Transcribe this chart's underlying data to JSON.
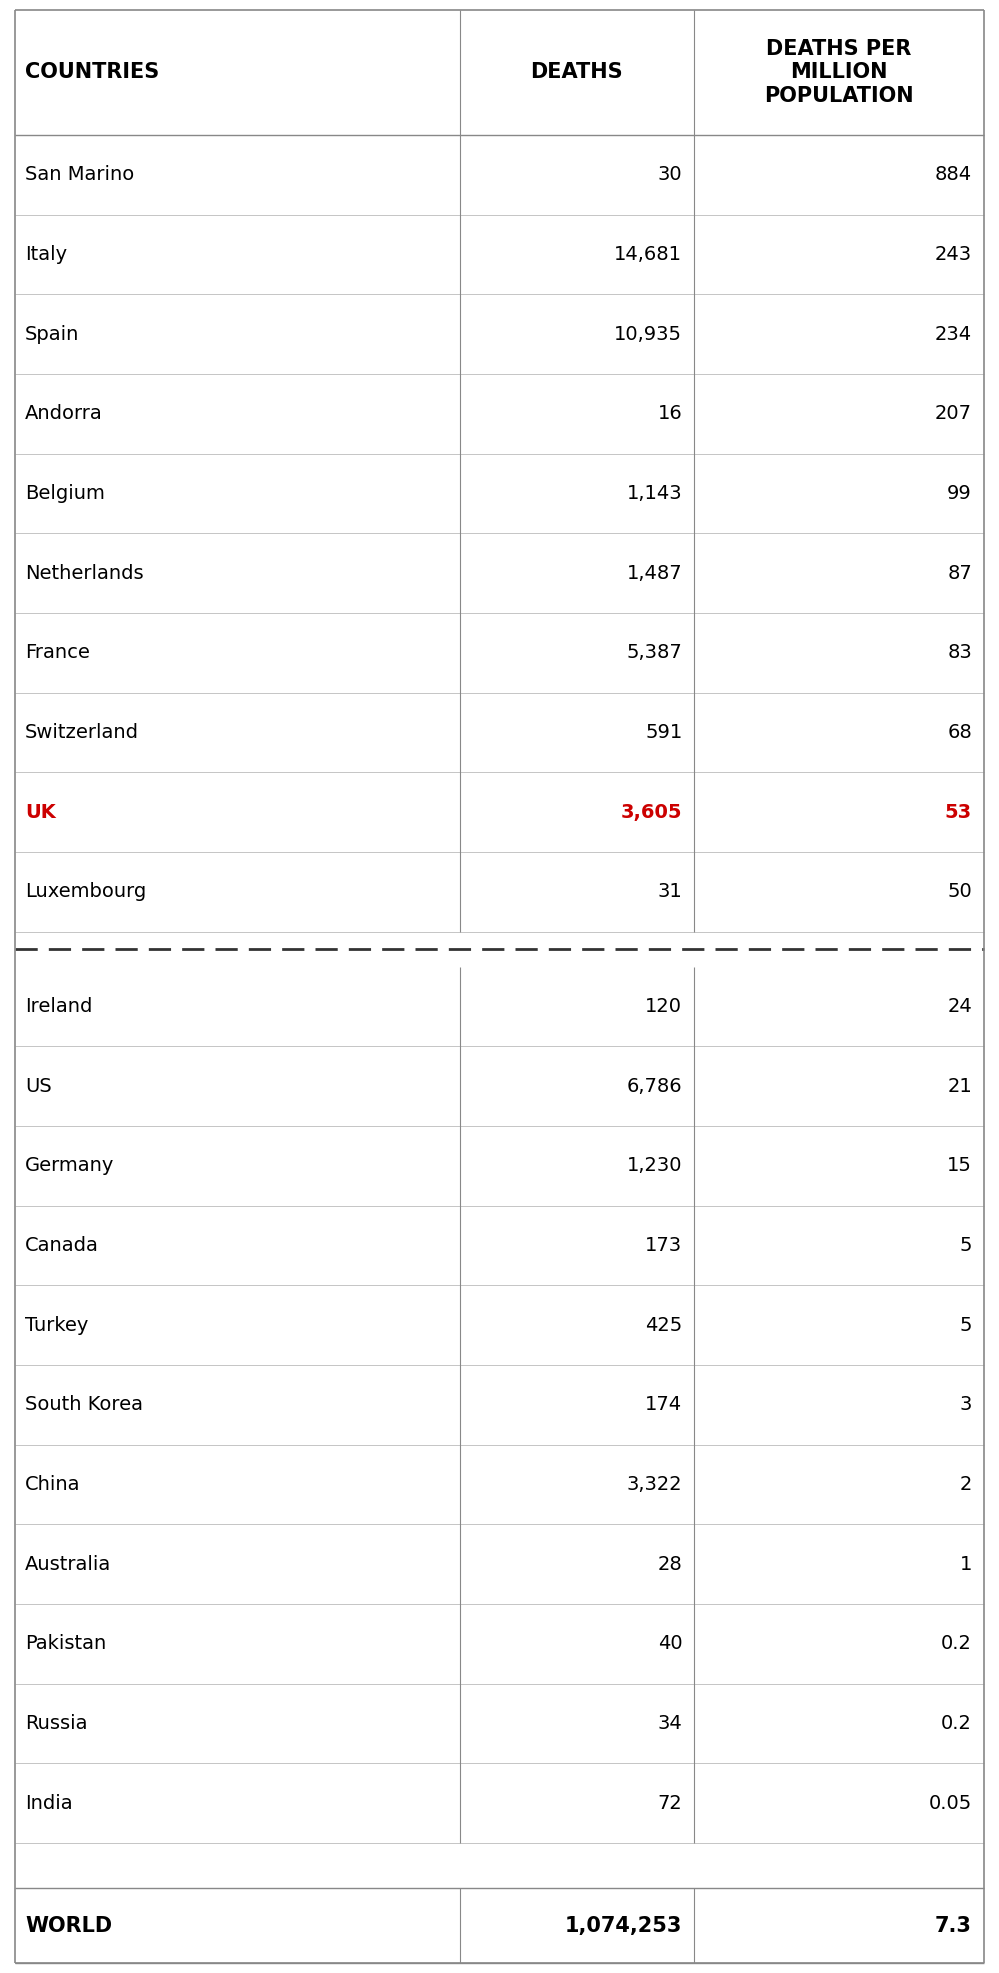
{
  "col_headers": [
    "COUNTRIES",
    "DEATHS",
    "DEATHS PER\nMILLION\nPOPULATION"
  ],
  "top_section": [
    {
      "country": "San Marino",
      "deaths": "30",
      "dpmp": "884",
      "highlight": false
    },
    {
      "country": "Italy",
      "deaths": "14,681",
      "dpmp": "243",
      "highlight": false
    },
    {
      "country": "Spain",
      "deaths": "10,935",
      "dpmp": "234",
      "highlight": false
    },
    {
      "country": "Andorra",
      "deaths": "16",
      "dpmp": "207",
      "highlight": false
    },
    {
      "country": "Belgium",
      "deaths": "1,143",
      "dpmp": "99",
      "highlight": false
    },
    {
      "country": "Netherlands",
      "deaths": "1,487",
      "dpmp": "87",
      "highlight": false
    },
    {
      "country": "France",
      "deaths": "5,387",
      "dpmp": "83",
      "highlight": false
    },
    {
      "country": "Switzerland",
      "deaths": "591",
      "dpmp": "68",
      "highlight": false
    },
    {
      "country": "UK",
      "deaths": "3,605",
      "dpmp": "53",
      "highlight": true
    },
    {
      "country": "Luxembourg",
      "deaths": "31",
      "dpmp": "50",
      "highlight": false
    }
  ],
  "bottom_section": [
    {
      "country": "Ireland",
      "deaths": "120",
      "dpmp": "24",
      "highlight": false
    },
    {
      "country": "US",
      "deaths": "6,786",
      "dpmp": "21",
      "highlight": false
    },
    {
      "country": "Germany",
      "deaths": "1,230",
      "dpmp": "15",
      "highlight": false
    },
    {
      "country": "Canada",
      "deaths": "173",
      "dpmp": "5",
      "highlight": false
    },
    {
      "country": "Turkey",
      "deaths": "425",
      "dpmp": "5",
      "highlight": false
    },
    {
      "country": "South Korea",
      "deaths": "174",
      "dpmp": "3",
      "highlight": false
    },
    {
      "country": "China",
      "deaths": "3,322",
      "dpmp": "2",
      "highlight": false
    },
    {
      "country": "Australia",
      "deaths": "28",
      "dpmp": "1",
      "highlight": false
    },
    {
      "country": "Pakistan",
      "deaths": "40",
      "dpmp": "0.2",
      "highlight": false
    },
    {
      "country": "Russia",
      "deaths": "34",
      "dpmp": "0.2",
      "highlight": false
    },
    {
      "country": "India",
      "deaths": "72",
      "dpmp": "0.05",
      "highlight": false
    }
  ],
  "world_row": {
    "country": "WORLD",
    "deaths": "1,074,253",
    "dpmp": "7.3"
  },
  "highlight_color": "#cc0000",
  "normal_color": "#000000",
  "header_color": "#000000",
  "world_color": "#000000",
  "bg_color": "#ffffff",
  "sep_line_color": "#bbbbbb",
  "border_color": "#888888",
  "divider_color": "#333333",
  "header_fontsize": 15,
  "data_fontsize": 14,
  "world_fontsize": 15,
  "fig_width": 9.99,
  "fig_height": 19.73,
  "dpi": 100
}
